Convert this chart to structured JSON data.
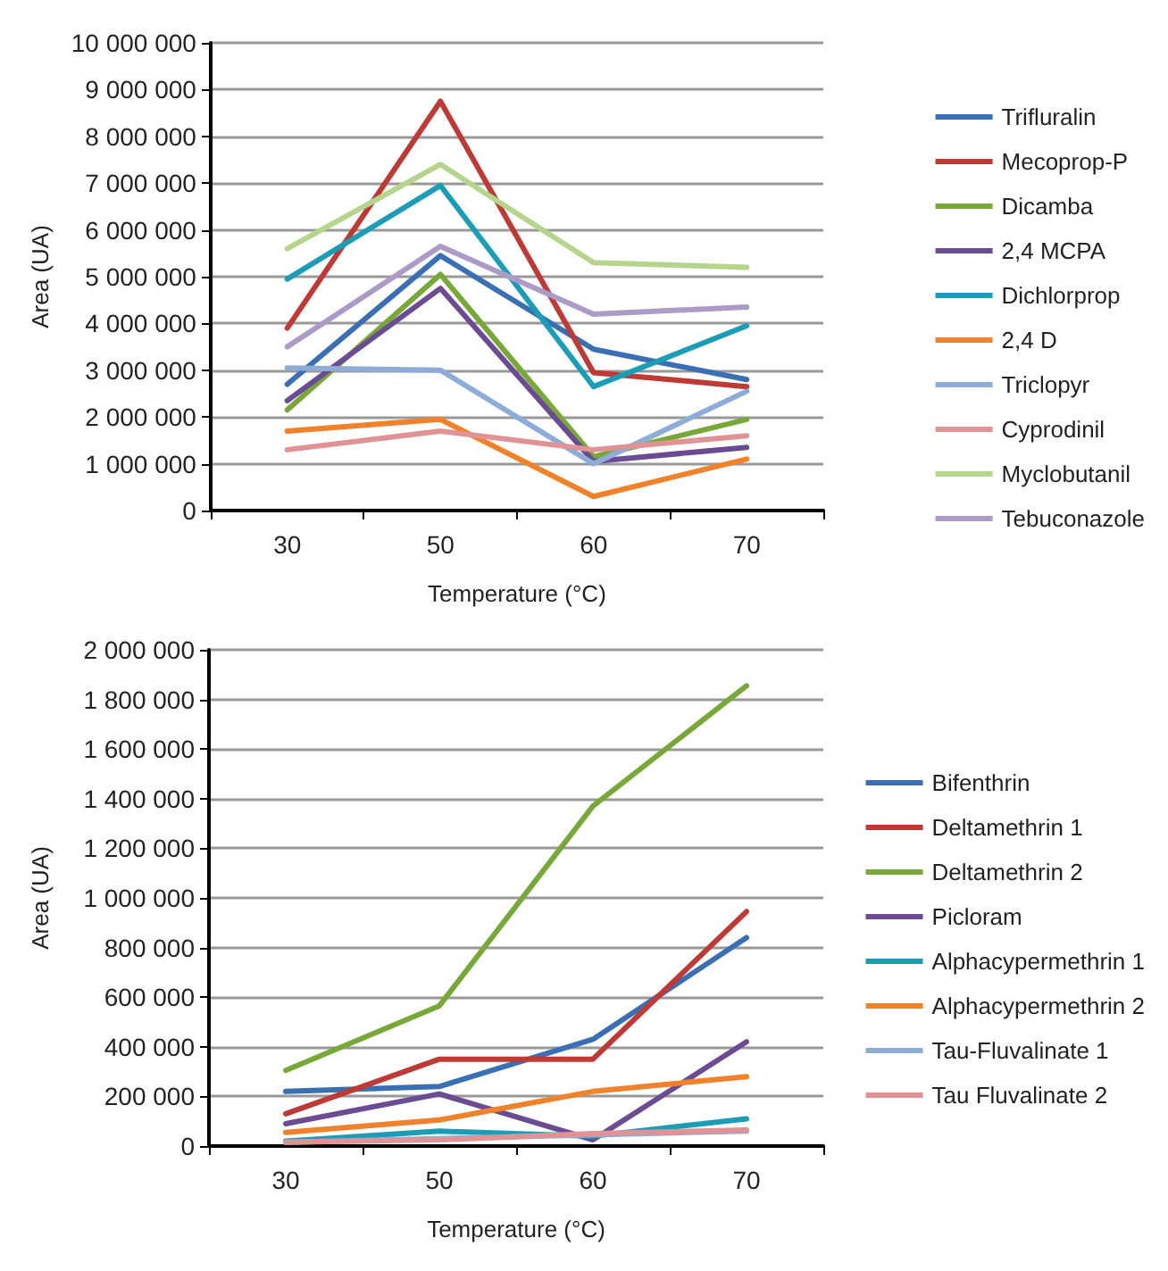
{
  "chart_data": [
    {
      "type": "line",
      "xlabel": "Temperature (°C)",
      "ylabel": "Area (UA)",
      "categories": [
        "30",
        "50",
        "60",
        "70"
      ],
      "ylim": [
        0,
        10000000
      ],
      "yticks": [
        0,
        {
          "value": 1000000,
          "label": "1 000 000"
        },
        {
          "value": 2000000,
          "label": "2 000 000"
        },
        {
          "value": 3000000,
          "label": "3 000 000"
        },
        {
          "value": 4000000,
          "label": "4 000 000"
        },
        {
          "value": 5000000,
          "label": "5 000 000"
        },
        {
          "value": 6000000,
          "label": "6 000 000"
        },
        {
          "value": 7000000,
          "label": "7 000 000"
        },
        {
          "value": 8000000,
          "label": "8 000 000"
        },
        {
          "value": 9000000,
          "label": "9 000 000"
        },
        {
          "value": 10000000,
          "label": "10 000 000"
        }
      ],
      "grid": "y",
      "legend": "right",
      "marker": "none",
      "line_style": "solid",
      "series": [
        {
          "name": "Trifluralin",
          "color": "#3a6fb3",
          "values": [
            2700000,
            5450000,
            3450000,
            2800000
          ]
        },
        {
          "name": "Mecoprop-P",
          "color": "#be3a36",
          "values": [
            3900000,
            8750000,
            2950000,
            2650000
          ]
        },
        {
          "name": "Dicamba",
          "color": "#78a83a",
          "values": [
            2150000,
            5050000,
            1150000,
            1950000
          ]
        },
        {
          "name": "2,4 MCPA",
          "color": "#6b4c93",
          "values": [
            2350000,
            4750000,
            1050000,
            1350000
          ]
        },
        {
          "name": "Dichlorprop",
          "color": "#1d9cb6",
          "values": [
            4950000,
            6950000,
            2650000,
            3950000
          ]
        },
        {
          "name": "2,4 D",
          "color": "#f0822c",
          "values": [
            1700000,
            1950000,
            300000,
            1100000
          ]
        },
        {
          "name": "Triclopyr",
          "color": "#8eacd8",
          "values": [
            3050000,
            3000000,
            1000000,
            2550000
          ]
        },
        {
          "name": "Cyprodinil",
          "color": "#e09395",
          "values": [
            1300000,
            1700000,
            1300000,
            1600000
          ]
        },
        {
          "name": "Myclobutanil",
          "color": "#b5d48c",
          "values": [
            5600000,
            7400000,
            5300000,
            5200000
          ]
        },
        {
          "name": "Tebuconazole",
          "color": "#ab9bc6",
          "values": [
            3500000,
            5650000,
            4200000,
            4350000
          ]
        }
      ]
    },
    {
      "type": "line",
      "xlabel": "Temperature (°C)",
      "ylabel": "Area (UA)",
      "categories": [
        "30",
        "50",
        "60",
        "70"
      ],
      "ylim": [
        0,
        2000000
      ],
      "yticks": [
        0,
        {
          "value": 200000,
          "label": "200 000"
        },
        {
          "value": 400000,
          "label": "400 000"
        },
        {
          "value": 600000,
          "label": "600 000"
        },
        {
          "value": 800000,
          "label": "800 000"
        },
        {
          "value": 1000000,
          "label": "1 000 000"
        },
        {
          "value": 1200000,
          "label": "1 200 000"
        },
        {
          "value": 1400000,
          "label": "1 400 000"
        },
        {
          "value": 1600000,
          "label": "1 600 000"
        },
        {
          "value": 1800000,
          "label": "1 800 000"
        },
        {
          "value": 2000000,
          "label": "2 000 000"
        }
      ],
      "grid": "y",
      "legend": "right",
      "marker": "none",
      "line_style": "solid",
      "series": [
        {
          "name": "Bifenthrin",
          "color": "#3a6fb3",
          "values": [
            220000,
            240000,
            430000,
            840000
          ]
        },
        {
          "name": "Deltamethrin 1",
          "color": "#be3a36",
          "values": [
            130000,
            350000,
            350000,
            945000
          ]
        },
        {
          "name": "Deltamethrin 2",
          "color": "#78a83a",
          "values": [
            305000,
            565000,
            1370000,
            1855000
          ]
        },
        {
          "name": "Picloram",
          "color": "#6b4c93",
          "values": [
            90000,
            210000,
            25000,
            420000
          ]
        },
        {
          "name": "Alphacypermethrin 1",
          "color": "#1d9cb6",
          "values": [
            20000,
            60000,
            40000,
            110000
          ]
        },
        {
          "name": "Alphacypermethrin 2",
          "color": "#f0822c",
          "values": [
            55000,
            105000,
            220000,
            280000
          ]
        },
        {
          "name": "Tau-Fluvalinate 1",
          "color": "#8eacd8",
          "values": [
            15000,
            30000,
            45000,
            60000
          ]
        },
        {
          "name": "Tau Fluvalinate 2",
          "color": "#e09395",
          "values": [
            15000,
            25000,
            50000,
            65000
          ]
        }
      ]
    }
  ]
}
